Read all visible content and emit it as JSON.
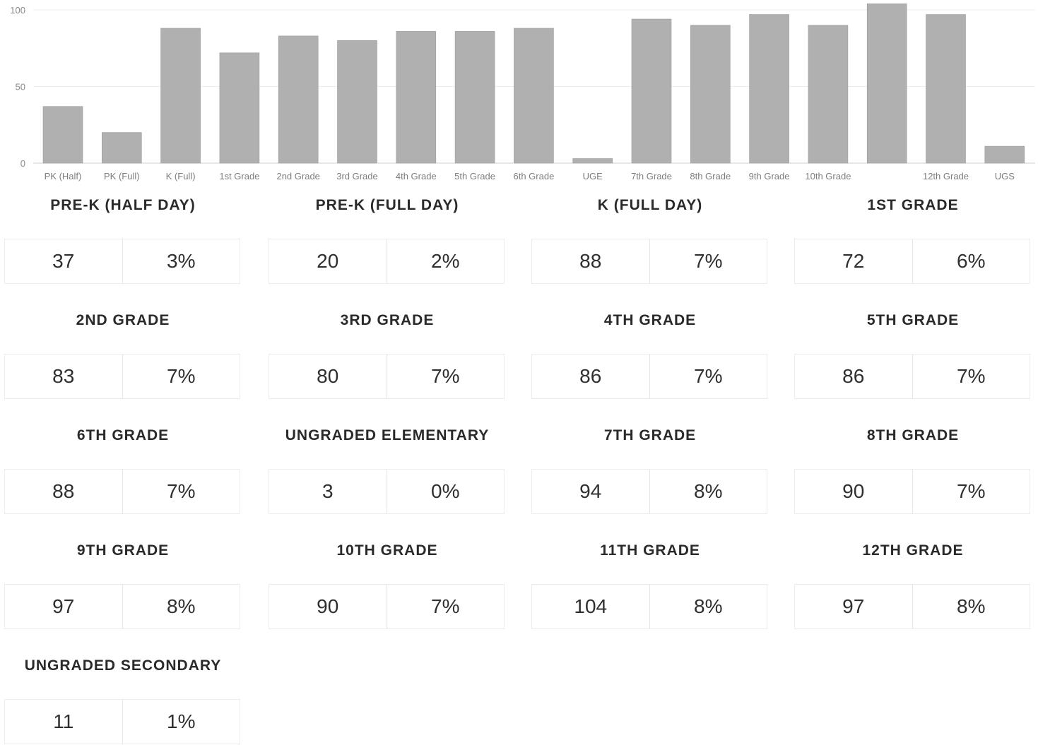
{
  "chart_data": {
    "type": "bar",
    "categories": [
      "PK (Half)",
      "PK (Full)",
      "K (Full)",
      "1st Grade",
      "2nd Grade",
      "3rd Grade",
      "4th Grade",
      "5th Grade",
      "6th Grade",
      "UGE",
      "7th Grade",
      "8th Grade",
      "9th Grade",
      "10th Grade",
      "",
      "12th Grade",
      "UGS"
    ],
    "values": [
      37,
      20,
      88,
      72,
      83,
      80,
      86,
      86,
      88,
      3,
      94,
      90,
      97,
      90,
      104,
      97,
      11
    ],
    "y_ticks": [
      "0",
      "50",
      "100"
    ],
    "ylim": [
      0,
      100
    ],
    "bar_color": "#b0b0b0",
    "grid": true
  },
  "cards": [
    {
      "title": "PRE-K (HALF DAY)",
      "count": "37",
      "percent": "3%"
    },
    {
      "title": "PRE-K (FULL DAY)",
      "count": "20",
      "percent": "2%"
    },
    {
      "title": "K (FULL DAY)",
      "count": "88",
      "percent": "7%"
    },
    {
      "title": "1ST GRADE",
      "count": "72",
      "percent": "6%"
    },
    {
      "title": "2ND GRADE",
      "count": "83",
      "percent": "7%"
    },
    {
      "title": "3RD GRADE",
      "count": "80",
      "percent": "7%"
    },
    {
      "title": "4TH GRADE",
      "count": "86",
      "percent": "7%"
    },
    {
      "title": "5TH GRADE",
      "count": "86",
      "percent": "7%"
    },
    {
      "title": "6TH GRADE",
      "count": "88",
      "percent": "7%"
    },
    {
      "title": "UNGRADED ELEMENTARY",
      "count": "3",
      "percent": "0%"
    },
    {
      "title": "7TH GRADE",
      "count": "94",
      "percent": "8%"
    },
    {
      "title": "8TH GRADE",
      "count": "90",
      "percent": "7%"
    },
    {
      "title": "9TH GRADE",
      "count": "97",
      "percent": "8%"
    },
    {
      "title": "10TH GRADE",
      "count": "90",
      "percent": "7%"
    },
    {
      "title": "11TH GRADE",
      "count": "104",
      "percent": "8%"
    },
    {
      "title": "12TH GRADE",
      "count": "97",
      "percent": "8%"
    },
    {
      "title": "UNGRADED SECONDARY",
      "count": "11",
      "percent": "1%"
    }
  ]
}
